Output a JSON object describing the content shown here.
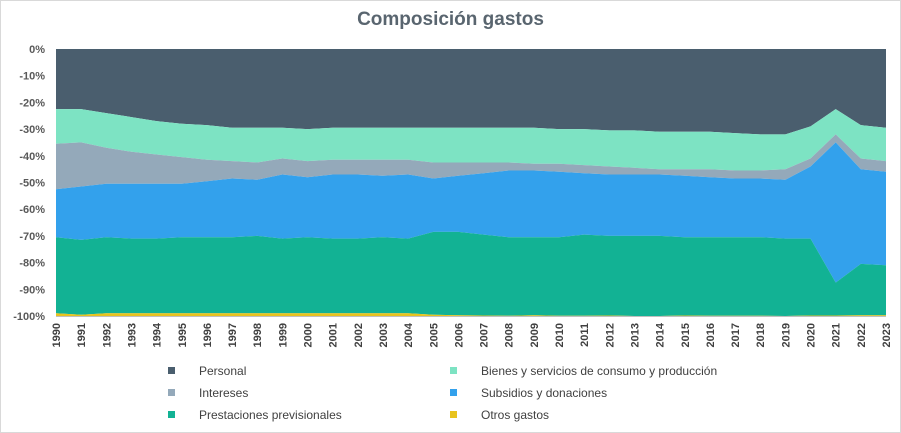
{
  "chart_data": {
    "type": "area",
    "stacking": "percent",
    "title": "Composición gastos",
    "xlabel": "",
    "ylabel": "",
    "ylim": [
      -100,
      0
    ],
    "yticks": [
      "0%",
      "-10%",
      "-20%",
      "-30%",
      "-40%",
      "-50%",
      "-60%",
      "-70%",
      "-80%",
      "-90%",
      "-100%"
    ],
    "legend_position": "bottom",
    "grid": false,
    "x": [
      "1990",
      "1991",
      "1992",
      "1993",
      "1994",
      "1995",
      "1996",
      "1997",
      "1998",
      "1999",
      "2000",
      "2001",
      "2002",
      "2003",
      "2004",
      "2005",
      "2006",
      "2007",
      "2008",
      "2009",
      "2010",
      "2011",
      "2012",
      "2013",
      "2014",
      "2015",
      "2016",
      "2017",
      "2018",
      "2019",
      "2020",
      "2021",
      "2022",
      "2023"
    ],
    "series": [
      {
        "name": "Personal",
        "color": "#4a5e6e",
        "values": [
          22.5,
          22.5,
          24,
          25.5,
          27,
          28,
          28.5,
          29.5,
          29.5,
          29.5,
          30,
          29.5,
          29.5,
          29.5,
          29.5,
          29.5,
          29.5,
          29.5,
          29.5,
          29.5,
          30,
          30,
          30.5,
          30.5,
          31,
          31,
          31,
          31.5,
          32,
          32,
          29,
          22.5,
          28.5,
          29.5
        ]
      },
      {
        "name": "Bienes y servicios de consumo y producción",
        "color": "#7de3c3",
        "values": [
          13,
          12.5,
          13,
          13,
          12.5,
          12.5,
          13,
          12.5,
          13,
          11.5,
          12,
          12,
          12,
          12,
          12,
          13,
          13,
          13,
          13,
          13.5,
          13,
          13.5,
          13.5,
          14,
          14,
          14,
          14,
          14,
          13.5,
          13,
          12,
          9.5,
          12.5,
          12.5
        ]
      },
      {
        "name": "Intereses",
        "color": "#94a9ba",
        "values": [
          17,
          16.5,
          13.5,
          12,
          11,
          10,
          8,
          6.5,
          6.5,
          6,
          6,
          5.5,
          5.5,
          6,
          5.5,
          6,
          5,
          4,
          3,
          2.5,
          3,
          3,
          3,
          2.5,
          2,
          2.5,
          3,
          3,
          3,
          4,
          3,
          3,
          4,
          4
        ]
      },
      {
        "name": "Subsidios y donaciones",
        "color": "#33a1ec",
        "values": [
          18,
          20,
          20,
          20.5,
          20.5,
          20,
          21,
          22,
          21,
          24,
          22.5,
          24,
          24,
          23,
          24,
          20,
          21,
          23,
          25,
          25,
          24.5,
          23,
          23,
          23,
          23,
          23,
          22.5,
          22,
          22,
          22,
          27,
          52.5,
          35.5,
          35
        ]
      },
      {
        "name": "Prestaciones previsionales",
        "color": "#12b294",
        "values": [
          28.5,
          28,
          28.5,
          28,
          28,
          28.5,
          28.5,
          28.5,
          29,
          28,
          28.5,
          28,
          28,
          28.5,
          28,
          31,
          31.2,
          30.3,
          29.4,
          29.2,
          29.4,
          30.4,
          29.8,
          30,
          30,
          29.3,
          29.4,
          29.4,
          29.4,
          29,
          28.8,
          12.3,
          19.2,
          18.7
        ]
      },
      {
        "name": "Otros gastos",
        "color": "#e8c31e",
        "values": [
          1,
          0.5,
          1,
          1,
          1,
          1,
          1,
          1,
          1,
          1,
          1,
          1,
          1,
          1,
          1,
          0.5,
          0.3,
          0.2,
          0.1,
          0.3,
          0.1,
          0.1,
          0.2,
          0,
          0,
          0.2,
          0.1,
          0.1,
          0.1,
          0,
          0.2,
          0.2,
          0.3,
          0.3
        ]
      }
    ]
  }
}
